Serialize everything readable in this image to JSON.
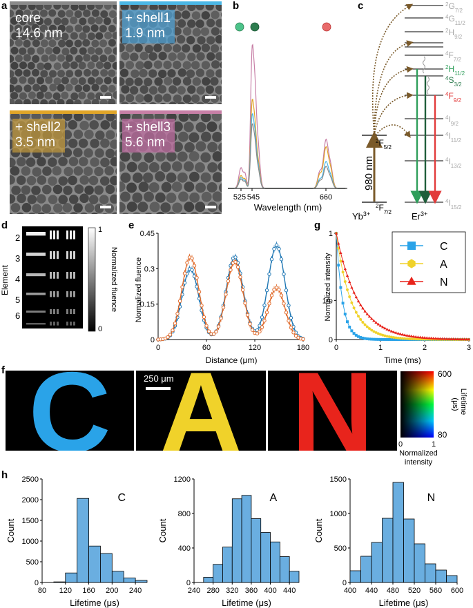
{
  "panels": {
    "a": "a",
    "b": "b",
    "c": "c",
    "d": "d",
    "e": "e",
    "g": "g",
    "f": "f",
    "h": "h"
  },
  "tem": [
    {
      "line1": "core",
      "line2": "14.6 nm",
      "bar_color": "#8a8a8a",
      "label_bg": "rgba(120,120,120,0)"
    },
    {
      "line1": "+ shell1",
      "line2": "1.9 nm",
      "bar_color": "#4bb7e6",
      "label_bg": "rgba(80,160,210,0.75)"
    },
    {
      "line1": "+ shell2",
      "line2": "3.5 nm",
      "bar_color": "#e0a528",
      "label_bg": "rgba(190,150,60,0.75)"
    },
    {
      "line1": "+ shell3",
      "line2": "5.6 nm",
      "bar_color": "#c77fa6",
      "label_bg": "rgba(190,110,160,0.75)"
    }
  ],
  "colors": {
    "green_light": "#4cc38a",
    "green_dark": "#2e7d4f",
    "red": "#e23b3b",
    "brown": "#7a5a2a",
    "gray_level": "#a8a8a8",
    "blue_series": "#1f77b4",
    "orange_series": "#e06a2a",
    "C": "#2aa3e8",
    "A": "#f0d22a",
    "N": "#e8241c",
    "hist_fill": "#6aaee0"
  },
  "chart_b": {
    "type": "line",
    "xlabel": "Wavelength (nm)",
    "x_ticks": [
      "525",
      "545",
      "660"
    ],
    "series": [
      {
        "color": "#c77fa6"
      },
      {
        "color": "#e0a528"
      },
      {
        "color": "#4bb7e6"
      },
      {
        "color": "#8a8a8a"
      }
    ]
  },
  "energy": {
    "yb_ground": "2F7/2",
    "yb_excited": "2F5/2",
    "yb_label": "Yb",
    "yb_sup": "3+",
    "er_label": "Er",
    "er_sup": "3+",
    "excitation": "980 nm",
    "levels": [
      {
        "main": "2G",
        "sub": "7/2",
        "color": "#a8a8a8"
      },
      {
        "main": "4G",
        "sub": "11/2",
        "color": "#a8a8a8"
      },
      {
        "main": "2H",
        "sub": "9/2",
        "color": "#a8a8a8"
      },
      {
        "main": "4F",
        "sub": "7/2",
        "color": "#a8a8a8"
      },
      {
        "main": "2H",
        "sub": "11/2",
        "color": "#2e9e5a"
      },
      {
        "main": "4S",
        "sub": "3/2",
        "color": "#2e7d4f"
      },
      {
        "main": "4F",
        "sub": "9/2",
        "color": "#e23b3b"
      },
      {
        "main": "4I",
        "sub": "9/2",
        "color": "#a8a8a8"
      },
      {
        "main": "4I",
        "sub": "11/2",
        "color": "#a8a8a8"
      },
      {
        "main": "4I",
        "sub": "13/2",
        "color": "#a8a8a8"
      },
      {
        "main": "4I",
        "sub": "15/2",
        "color": "#a8a8a8"
      }
    ]
  },
  "chart_d": {
    "ylabel": "Element",
    "rows": [
      "2",
      "3",
      "4",
      "5",
      "6"
    ],
    "colorbar_label": "Normalized fluence",
    "colorbar_max": "1",
    "colorbar_min": "0"
  },
  "chart_data": [
    {
      "type": "line",
      "panel": "e",
      "xlabel": "Distance (μm)",
      "ylabel": "Normalized fluence",
      "xlim": [
        0,
        180
      ],
      "ylim": [
        0,
        0.45
      ],
      "x_ticks": [
        0,
        60,
        120,
        180
      ],
      "y_ticks": [
        0,
        0.15,
        0.3,
        0.45
      ],
      "y_tick_labels": [
        "0",
        "0.15",
        "0.3",
        "0.45"
      ],
      "series": [
        {
          "color": "#1f77b4",
          "peaks": [
            [
              40,
              0.3
            ],
            [
              95,
              0.35
            ],
            [
              147,
              0.4
            ]
          ]
        },
        {
          "color": "#e06a2a",
          "peaks": [
            [
              40,
              0.35
            ],
            [
              95,
              0.33
            ],
            [
              147,
              0.22
            ]
          ]
        }
      ]
    },
    {
      "type": "line",
      "panel": "g",
      "xlabel": "Time (ms)",
      "ylabel": "Normalized intensity",
      "xlim": [
        0,
        3
      ],
      "ylim": [
        0,
        1
      ],
      "x_ticks": [
        0,
        1,
        2,
        3
      ],
      "y_tick_labels": [
        "0",
        "1/e",
        "1"
      ],
      "series": [
        {
          "name": "C",
          "color": "#2aa3e8",
          "marker": "square",
          "tau_ms": 0.14
        },
        {
          "name": "A",
          "color": "#f0d22a",
          "marker": "hexagon",
          "tau_ms": 0.33
        },
        {
          "name": "N",
          "color": "#e8241c",
          "marker": "triangle",
          "tau_ms": 0.49
        }
      ]
    },
    {
      "type": "bar",
      "panel": "h-C",
      "title": "C",
      "xlabel": "Lifetime (μs)",
      "ylabel": "Count",
      "xlim": [
        80,
        260
      ],
      "ylim": [
        0,
        2500
      ],
      "x_ticks": [
        80,
        120,
        160,
        200,
        240
      ],
      "y_ticks": [
        0,
        500,
        1000,
        1500,
        2000,
        2500
      ],
      "bin_width": 20,
      "bins": [
        100,
        120,
        140,
        160,
        180,
        200,
        220,
        240
      ],
      "values": [
        15,
        230,
        2030,
        880,
        700,
        270,
        110,
        50
      ]
    },
    {
      "type": "bar",
      "panel": "h-A",
      "title": "A",
      "xlabel": "Lifetime (μs)",
      "ylabel": "Count",
      "xlim": [
        240,
        460
      ],
      "ylim": [
        0,
        1200
      ],
      "x_ticks": [
        240,
        280,
        320,
        360,
        400,
        440
      ],
      "y_ticks": [
        0,
        400,
        800,
        1200
      ],
      "bin_width": 20,
      "bins": [
        260,
        280,
        300,
        320,
        340,
        360,
        380,
        400,
        420,
        440
      ],
      "values": [
        60,
        210,
        410,
        970,
        1010,
        740,
        580,
        470,
        300,
        130
      ]
    },
    {
      "type": "bar",
      "panel": "h-N",
      "title": "N",
      "xlabel": "Lifetime (μs)",
      "ylabel": "Count",
      "xlim": [
        400,
        600
      ],
      "ylim": [
        0,
        1500
      ],
      "x_ticks": [
        400,
        440,
        480,
        520,
        560,
        600
      ],
      "y_ticks": [
        0,
        500,
        1000,
        1500
      ],
      "bin_width": 20,
      "bins": [
        400,
        420,
        440,
        460,
        480,
        500,
        520,
        540,
        560,
        580
      ],
      "values": [
        170,
        380,
        580,
        930,
        1450,
        920,
        560,
        270,
        180,
        100
      ]
    }
  ],
  "letters": [
    {
      "char": "C",
      "color": "#2aa3e8"
    },
    {
      "char": "A",
      "color": "#f0d22a"
    },
    {
      "char": "N",
      "color": "#e8241c"
    }
  ],
  "scale_bar": "250 μm",
  "lifetime_bar": {
    "label": "Lifetime",
    "unit": "(μs)",
    "max": "600",
    "min": "80",
    "x_min": "0",
    "x_max": "1",
    "xlabel_1": "Normalized",
    "xlabel_2": "intensity"
  }
}
